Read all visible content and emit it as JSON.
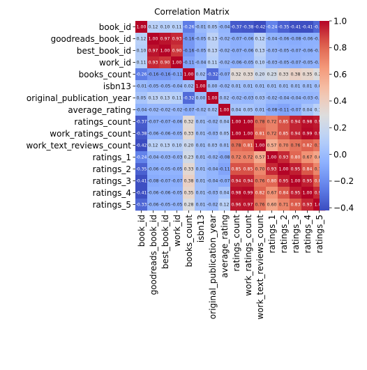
{
  "chart_data": {
    "type": "heatmap",
    "title": "Correlation Matrix",
    "labels": [
      "book_id",
      "goodreads_book_id",
      "best_book_id",
      "work_id",
      "books_count",
      "isbn13",
      "original_publication_year",
      "average_rating",
      "ratings_count",
      "work_ratings_count",
      "work_text_reviews_count",
      "ratings_1",
      "ratings_2",
      "ratings_3",
      "ratings_4",
      "ratings_5"
    ],
    "matrix": [
      [
        1.0,
        0.12,
        0.1,
        0.11,
        -0.26,
        -0.01,
        0.05,
        -0.04,
        -0.37,
        -0.38,
        -0.42,
        -0.24,
        -0.35,
        -0.41,
        -0.41,
        -0.33
      ],
      [
        0.12,
        1.0,
        0.97,
        0.93,
        -0.16,
        -0.05,
        0.13,
        -0.02,
        -0.07,
        -0.06,
        0.12,
        -0.04,
        -0.06,
        -0.08,
        -0.06,
        -0.06
      ],
      [
        0.1,
        0.97,
        1.0,
        0.9,
        -0.16,
        -0.05,
        0.13,
        -0.02,
        -0.07,
        -0.06,
        0.13,
        -0.03,
        -0.05,
        -0.07,
        -0.06,
        -0.05
      ],
      [
        0.11,
        0.93,
        0.9,
        1.0,
        -0.11,
        -0.04,
        0.11,
        -0.02,
        -0.06,
        -0.05,
        0.1,
        -0.03,
        -0.05,
        -0.07,
        -0.05,
        -0.05
      ],
      [
        -0.26,
        -0.16,
        -0.16,
        -0.11,
        1.0,
        0.02,
        -0.32,
        -0.07,
        0.32,
        0.33,
        0.2,
        0.23,
        0.33,
        0.38,
        0.35,
        0.28
      ],
      [
        -0.01,
        -0.05,
        -0.05,
        -0.04,
        0.02,
        1.0,
        -0.0,
        -0.02,
        0.01,
        0.01,
        0.01,
        0.01,
        0.01,
        0.01,
        0.01,
        0.01
      ],
      [
        0.05,
        0.13,
        0.13,
        0.11,
        -0.32,
        -0.0,
        1.0,
        0.02,
        -0.02,
        -0.03,
        0.03,
        -0.02,
        -0.04,
        -0.04,
        -0.03,
        -0.02
      ],
      [
        -0.04,
        -0.02,
        -0.02,
        -0.02,
        -0.07,
        -0.02,
        0.02,
        1.0,
        0.04,
        0.05,
        0.01,
        -0.08,
        -0.11,
        -0.07,
        0.04,
        0.12
      ],
      [
        -0.37,
        -0.07,
        -0.07,
        -0.06,
        0.32,
        0.01,
        -0.02,
        0.04,
        1.0,
        1.0,
        0.78,
        0.72,
        0.85,
        0.94,
        0.98,
        0.96
      ],
      [
        -0.38,
        -0.06,
        -0.06,
        -0.05,
        0.33,
        0.01,
        -0.03,
        0.05,
        1.0,
        1.0,
        0.81,
        0.72,
        0.85,
        0.94,
        0.99,
        0.97
      ],
      [
        -0.42,
        0.12,
        0.13,
        0.1,
        0.2,
        0.01,
        0.03,
        0.01,
        0.78,
        0.81,
        1.0,
        0.57,
        0.7,
        0.76,
        0.82,
        0.76
      ],
      [
        -0.24,
        -0.04,
        -0.03,
        -0.03,
        0.23,
        0.01,
        -0.02,
        -0.08,
        0.72,
        0.72,
        0.57,
        1.0,
        0.93,
        0.8,
        0.67,
        0.6
      ],
      [
        -0.35,
        -0.06,
        -0.05,
        -0.05,
        0.33,
        0.01,
        -0.04,
        -0.11,
        0.85,
        0.85,
        0.7,
        0.93,
        1.0,
        0.95,
        0.84,
        0.71
      ],
      [
        -0.41,
        -0.08,
        -0.07,
        -0.07,
        0.38,
        0.01,
        -0.04,
        -0.07,
        0.94,
        0.94,
        0.76,
        0.8,
        0.95,
        1.0,
        0.95,
        0.83
      ],
      [
        -0.41,
        -0.06,
        -0.06,
        -0.05,
        0.35,
        0.01,
        -0.03,
        0.04,
        0.98,
        0.99,
        0.82,
        0.67,
        0.84,
        0.95,
        1.0,
        0.93
      ],
      [
        -0.33,
        -0.06,
        -0.05,
        -0.05,
        0.28,
        0.01,
        -0.02,
        0.12,
        0.96,
        0.97,
        0.76,
        0.6,
        0.71,
        0.83,
        0.93,
        1.0
      ]
    ],
    "vmin": -0.42,
    "vmax": 1.0,
    "colormap": "coolwarm",
    "colorbar_ticks": [
      "1.0",
      "0.8",
      "0.6",
      "0.4",
      "0.2",
      "0.0",
      "−0.2",
      "−0.4"
    ],
    "colorbar_tick_values": [
      1.0,
      0.8,
      0.6,
      0.4,
      0.2,
      0.0,
      -0.2,
      -0.4
    ],
    "annotation_format": "0.00"
  }
}
